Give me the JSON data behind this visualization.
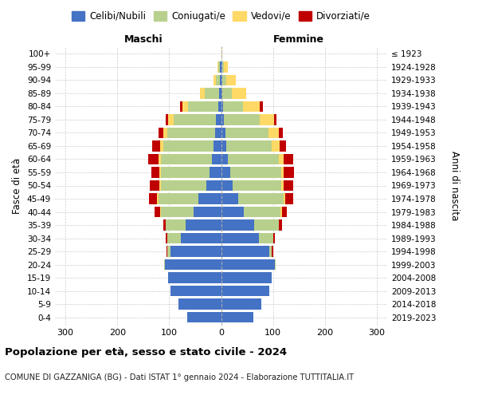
{
  "age_groups": [
    "0-4",
    "5-9",
    "10-14",
    "15-19",
    "20-24",
    "25-29",
    "30-34",
    "35-39",
    "40-44",
    "45-49",
    "50-54",
    "55-59",
    "60-64",
    "65-69",
    "70-74",
    "75-79",
    "80-84",
    "85-89",
    "90-94",
    "95-99",
    "100+"
  ],
  "birth_years": [
    "2019-2023",
    "2014-2018",
    "2009-2013",
    "2004-2008",
    "1999-2003",
    "1994-1998",
    "1989-1993",
    "1984-1988",
    "1979-1983",
    "1974-1978",
    "1969-1973",
    "1964-1968",
    "1959-1963",
    "1954-1958",
    "1949-1953",
    "1944-1948",
    "1939-1943",
    "1934-1938",
    "1929-1933",
    "1924-1928",
    "≤ 1923"
  ],
  "males": {
    "celibi": [
      65,
      82,
      98,
      102,
      108,
      98,
      78,
      68,
      53,
      43,
      28,
      23,
      18,
      14,
      12,
      10,
      6,
      4,
      2,
      2,
      0
    ],
    "coniugati": [
      0,
      0,
      0,
      0,
      2,
      5,
      25,
      38,
      63,
      78,
      88,
      93,
      98,
      98,
      92,
      82,
      58,
      28,
      8,
      3,
      0
    ],
    "vedovi": [
      0,
      0,
      0,
      0,
      0,
      0,
      0,
      1,
      2,
      3,
      3,
      3,
      5,
      5,
      8,
      10,
      10,
      8,
      5,
      2,
      0
    ],
    "divorziati": [
      0,
      0,
      0,
      0,
      0,
      2,
      3,
      5,
      10,
      15,
      18,
      15,
      20,
      15,
      8,
      5,
      5,
      0,
      0,
      0,
      0
    ]
  },
  "females": {
    "nubili": [
      62,
      78,
      93,
      98,
      103,
      93,
      73,
      63,
      43,
      33,
      23,
      18,
      13,
      10,
      8,
      6,
      4,
      3,
      2,
      2,
      0
    ],
    "coniugate": [
      0,
      0,
      0,
      0,
      2,
      5,
      28,
      48,
      72,
      88,
      93,
      98,
      98,
      88,
      83,
      68,
      38,
      18,
      8,
      3,
      0
    ],
    "vedove": [
      0,
      0,
      0,
      0,
      0,
      0,
      0,
      1,
      2,
      3,
      5,
      5,
      10,
      15,
      20,
      28,
      33,
      28,
      18,
      8,
      2
    ],
    "divorziate": [
      0,
      0,
      0,
      0,
      0,
      2,
      3,
      5,
      10,
      15,
      18,
      20,
      18,
      12,
      8,
      5,
      5,
      0,
      0,
      0,
      0
    ]
  },
  "colors": {
    "celibi": "#4472c4",
    "coniugati": "#b8d08d",
    "vedovi": "#ffd966",
    "divorziati": "#c00000"
  },
  "xlim": 320,
  "xticks": [
    -300,
    -200,
    -100,
    0,
    100,
    200,
    300
  ],
  "title": "Popolazione per età, sesso e stato civile - 2024",
  "subtitle": "COMUNE DI GAZZANIGA (BG) - Dati ISTAT 1° gennaio 2024 - Elaborazione TUTTITALIA.IT",
  "ylabel_left": "Fasce di età",
  "ylabel_right": "Anni di nascita",
  "header_left": "Maschi",
  "header_right": "Femmine",
  "legend_labels": [
    "Celibi/Nubili",
    "Coniugati/e",
    "Vedovi/e",
    "Divorziati/e"
  ]
}
